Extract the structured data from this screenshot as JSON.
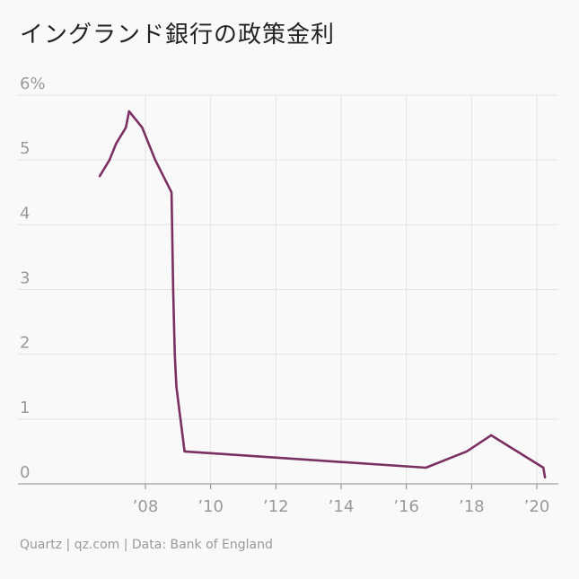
{
  "chart_data": {
    "type": "line",
    "title": "イングランド銀行の政策金利",
    "xlabel": "",
    "ylabel": "",
    "y_ticks": [
      "0",
      "1",
      "2",
      "3",
      "4",
      "5",
      "6%"
    ],
    "x_ticks": [
      "’08",
      "’10",
      "’12",
      "’14",
      "’16",
      "’18",
      "’20"
    ],
    "x_tick_years": [
      2008,
      2010,
      2012,
      2014,
      2016,
      2018,
      2020
    ],
    "ylim": [
      0,
      6
    ],
    "xlim": [
      2006.0,
      2020.6
    ],
    "grid": true,
    "line_color": "#7a3060",
    "series": [
      {
        "x": [
          2006.6,
          2006.9,
          2007.1,
          2007.4,
          2007.5,
          2007.9,
          2008.3,
          2008.8,
          2008.85,
          2008.9,
          2008.95,
          2009.2,
          2016.6,
          2017.85,
          2018.6,
          2020.2,
          2020.25
        ],
        "values": [
          4.75,
          5.0,
          5.25,
          5.5,
          5.75,
          5.5,
          5.0,
          4.5,
          3.0,
          2.0,
          1.5,
          0.5,
          0.25,
          0.5,
          0.75,
          0.25,
          0.1
        ]
      }
    ]
  },
  "footer": "Quartz | qz.com | Data: Bank of England"
}
